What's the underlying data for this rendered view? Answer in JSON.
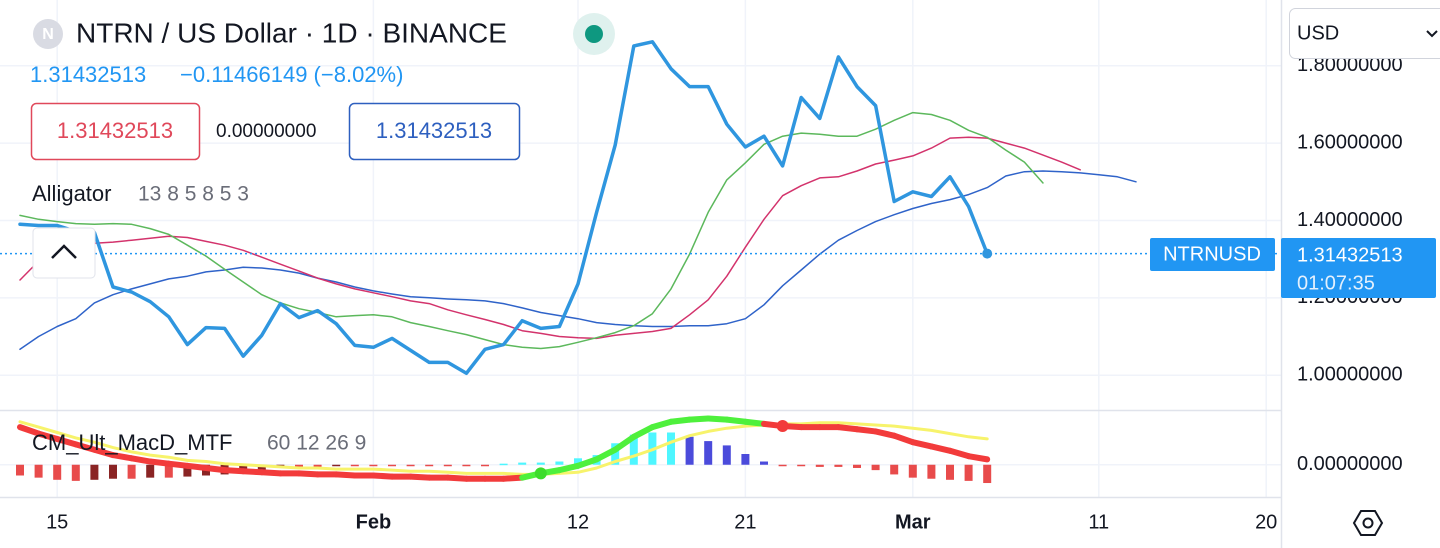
{
  "header": {
    "title": "NTRN / US Dollar · 1D · BINANCE",
    "logo": "N",
    "change": "−0.11466149 (−8.02%)",
    "open_diff": "0.00000000",
    "indicator": "Alligator",
    "indicator_params": "13 8 5 8 5 3",
    "oscillator": "CM_Ult_MacD_MTF",
    "oscillator_params": "60 12 26 9",
    "currency": "USD",
    "symbol": "NTRNUSD",
    "countdown": "01:07:35"
  },
  "chart_data": [
    {
      "type": "line",
      "log_scale": false,
      "grid": true,
      "categories": [
        null,
        null,
        "15",
        null,
        null,
        null,
        null,
        null,
        null,
        null,
        null,
        null,
        null,
        null,
        null,
        null,
        null,
        null,
        null,
        "Feb",
        null,
        null,
        null,
        null,
        null,
        null,
        null,
        null,
        null,
        null,
        "12",
        null,
        null,
        null,
        null,
        null,
        null,
        null,
        null,
        "21",
        null,
        null,
        null,
        null,
        null,
        null,
        null,
        null,
        "Mar",
        null,
        null,
        null,
        null,
        null,
        null,
        null,
        null,
        null,
        "11",
        null,
        null,
        null,
        null,
        null,
        null,
        null,
        null,
        "20"
      ],
      "ylim": [
        0.91,
        1.97
      ],
      "yticks": [
        {
          "value": 1.0,
          "label": "1.00000000"
        },
        {
          "value": 1.2,
          "label": "1.20000000"
        },
        {
          "value": 1.4,
          "label": "1.40000000"
        },
        {
          "value": 1.6,
          "label": "1.60000000"
        },
        {
          "value": 1.8,
          "label": "1.80000000"
        }
      ],
      "series": [
        {
          "color": "#2f96df",
          "width": 3.5,
          "values": [
            1.39,
            1.387,
            1.387,
            1.372,
            1.369,
            1.228,
            1.215,
            1.19,
            1.151,
            1.079,
            1.123,
            1.121,
            1.049,
            1.103,
            1.185,
            1.149,
            1.167,
            1.133,
            1.077,
            1.072,
            1.095,
            1.064,
            1.033,
            1.033,
            1.005,
            1.067,
            1.079,
            1.141,
            1.121,
            1.126,
            1.236,
            1.421,
            1.595,
            1.851,
            1.862,
            1.792,
            1.746,
            1.746,
            1.649,
            1.59,
            1.618,
            1.541,
            1.718,
            1.664,
            1.823,
            1.746,
            1.697,
            1.449,
            1.474,
            1.462,
            1.513,
            1.436,
            1.31432513,
            null,
            null,
            null,
            null,
            null,
            null,
            null,
            null,
            null,
            null,
            null,
            null,
            null,
            null,
            null
          ]
        },
        {
          "color": "#2f63c9",
          "width": 1.5,
          "values": [
            1.067,
            1.1,
            1.126,
            1.146,
            1.187,
            1.208,
            1.223,
            1.236,
            1.249,
            1.256,
            1.267,
            1.272,
            1.279,
            1.277,
            1.272,
            1.264,
            1.251,
            1.241,
            1.228,
            1.218,
            1.21,
            1.203,
            1.2,
            1.197,
            1.195,
            1.192,
            1.185,
            1.174,
            1.162,
            1.154,
            1.146,
            1.136,
            1.131,
            1.128,
            1.126,
            1.126,
            1.128,
            1.128,
            1.133,
            1.146,
            1.182,
            1.231,
            1.272,
            1.313,
            1.349,
            1.374,
            1.397,
            1.415,
            1.431,
            1.444,
            1.454,
            1.467,
            1.485,
            1.515,
            1.526,
            1.528,
            1.526,
            1.523,
            1.518,
            1.513,
            1.5,
            null,
            null,
            null,
            null,
            null,
            null,
            null
          ]
        },
        {
          "color": "#d3336c",
          "width": 1.5,
          "values": [
            1.246,
            1.295,
            1.321,
            1.336,
            1.341,
            1.344,
            1.349,
            1.354,
            1.359,
            1.356,
            1.346,
            1.336,
            1.323,
            1.305,
            1.287,
            1.269,
            1.251,
            1.236,
            1.223,
            1.213,
            1.203,
            1.192,
            1.185,
            1.169,
            1.156,
            1.144,
            1.131,
            1.115,
            1.108,
            1.1,
            1.097,
            1.095,
            1.103,
            1.108,
            1.113,
            1.121,
            1.156,
            1.195,
            1.256,
            1.331,
            1.403,
            1.464,
            1.49,
            1.51,
            1.513,
            1.528,
            1.546,
            1.556,
            1.567,
            1.587,
            1.613,
            1.615,
            1.613,
            1.6,
            1.587,
            1.569,
            1.551,
            1.531,
            null,
            null,
            null,
            null,
            null,
            null,
            null,
            null,
            null,
            null
          ]
        },
        {
          "color": "#5cb85c",
          "width": 1.5,
          "values": [
            1.413,
            1.403,
            1.397,
            1.392,
            1.39,
            1.392,
            1.39,
            1.379,
            1.364,
            1.336,
            1.308,
            1.274,
            1.241,
            1.208,
            1.187,
            1.172,
            1.162,
            1.151,
            1.154,
            1.156,
            1.151,
            1.136,
            1.126,
            1.115,
            1.105,
            1.092,
            1.079,
            1.072,
            1.069,
            1.074,
            1.085,
            1.097,
            1.11,
            1.128,
            1.159,
            1.223,
            1.313,
            1.421,
            1.505,
            1.549,
            1.597,
            1.618,
            1.626,
            1.623,
            1.618,
            1.618,
            1.636,
            1.659,
            1.679,
            1.674,
            1.659,
            1.633,
            1.615,
            1.582,
            1.551,
            1.497,
            null,
            null,
            null,
            null,
            null,
            null,
            null,
            null,
            null,
            null,
            null,
            null
          ]
        }
      ],
      "last_price_line_color": "#2196f3"
    },
    {
      "type": "macd",
      "ylim": [
        -0.03,
        0.05
      ],
      "yticks": [
        {
          "value": 0,
          "label": "0.00000000"
        }
      ],
      "macd": {
        "color_up": "#4ef03c",
        "color_down": "#f23b3b",
        "width": 6,
        "values": [
          0.035,
          0.029,
          0.024,
          0.019,
          0.014,
          0.009,
          0.006,
          0.003,
          0.001,
          -0.001,
          -0.003,
          -0.005,
          -0.006,
          -0.007,
          -0.008,
          -0.008,
          -0.009,
          -0.009,
          -0.01,
          -0.01,
          -0.011,
          -0.011,
          -0.012,
          -0.012,
          -0.013,
          -0.013,
          -0.013,
          -0.012,
          -0.008,
          -0.005,
          -0.001,
          0.005,
          0.014,
          0.026,
          0.035,
          0.04,
          0.042,
          0.043,
          0.042,
          0.04,
          0.038,
          0.036,
          0.035,
          0.035,
          0.035,
          0.033,
          0.031,
          0.027,
          0.021,
          0.017,
          0.013,
          0.008,
          0.005
        ]
      },
      "signal": {
        "color": "#f7f36b",
        "width": 3,
        "values": [
          0.04,
          0.035,
          0.03,
          0.025,
          0.021,
          0.016,
          0.012,
          0.009,
          0.007,
          0.004,
          0.003,
          0.001,
          0.0,
          -0.001,
          -0.002,
          -0.003,
          -0.003,
          -0.004,
          -0.004,
          -0.004,
          -0.005,
          -0.006,
          -0.006,
          -0.007,
          -0.008,
          -0.008,
          -0.008,
          -0.009,
          -0.009,
          -0.008,
          -0.007,
          -0.003,
          0.003,
          0.008,
          0.014,
          0.021,
          0.027,
          0.031,
          0.034,
          0.036,
          0.037,
          0.038,
          0.038,
          0.039,
          0.039,
          0.038,
          0.037,
          0.036,
          0.034,
          0.032,
          0.029,
          0.026,
          0.024
        ]
      },
      "histogram": {
        "colors": {
          "pos_up": "#4ef6ff",
          "pos_down": "#4b4bdb",
          "neg_down": "#e84b4b",
          "neg_up": "#8a2424"
        },
        "values": [
          -0.01,
          -0.012,
          -0.014,
          -0.015,
          -0.014,
          -0.013,
          -0.013,
          -0.012,
          -0.012,
          -0.011,
          -0.01,
          -0.009,
          -0.008,
          -0.006,
          -0.002,
          -0.002,
          -0.002,
          -0.001,
          -0.001,
          -0.001,
          -0.001,
          -0.001,
          -0.001,
          -0.001,
          -0.001,
          -0.001,
          0.001,
          0.002,
          0.002,
          0.003,
          0.006,
          0.009,
          0.02,
          0.028,
          0.03,
          0.03,
          0.026,
          0.022,
          0.018,
          0.01,
          0.003,
          -0.001,
          -0.001,
          -0.002,
          -0.002,
          -0.003,
          -0.005,
          -0.009,
          -0.012,
          -0.013,
          -0.014,
          -0.015,
          -0.017
        ]
      },
      "cross_colors": {
        "up": "#3ddc2c",
        "down": "#f23b3b"
      }
    }
  ]
}
